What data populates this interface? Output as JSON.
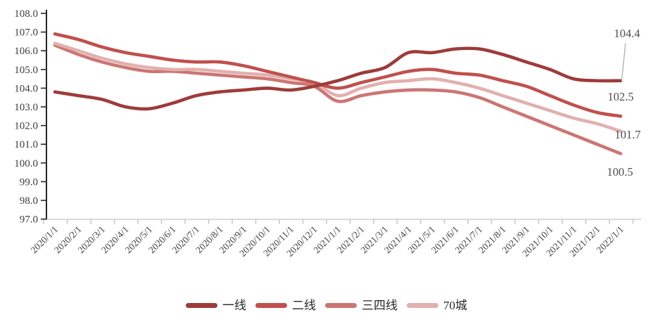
{
  "chart_data": {
    "type": "line",
    "title": "",
    "xlabel": "",
    "ylabel": "",
    "x": [
      "2020/1/1",
      "2020/2/1",
      "2020/3/1",
      "2020/4/1",
      "2020/5/1",
      "2020/6/1",
      "2020/7/1",
      "2020/8/1",
      "2020/9/1",
      "2020/10/1",
      "2020/11/1",
      "2020/12/1",
      "2021/1/1",
      "2021/2/1",
      "2021/3/1",
      "2021/4/1",
      "2021/5/1",
      "2021/6/1",
      "2021/7/1",
      "2021/8/1",
      "2021/9/1",
      "2021/10/1",
      "2021/11/1",
      "2021/12/1",
      "2022/1/1"
    ],
    "ylim": [
      97.0,
      108.0
    ],
    "ytick_step": 1,
    "ytick_labels": [
      "97.0",
      "98.0",
      "99.0",
      "100.0",
      "101.0",
      "102.0",
      "103.0",
      "104.0",
      "105.0",
      "106.0",
      "107.0",
      "108.0"
    ],
    "grid": false,
    "legend_position": "bottom",
    "series": [
      {
        "name": "一线",
        "color": "#9d3c39",
        "end_label": "104.4",
        "values": [
          103.8,
          103.6,
          103.4,
          103.0,
          102.9,
          103.2,
          103.6,
          103.8,
          103.9,
          104.0,
          103.9,
          104.1,
          104.4,
          104.8,
          105.1,
          105.9,
          105.9,
          106.1,
          106.1,
          105.8,
          105.4,
          105.0,
          104.5,
          104.4,
          104.4
        ]
      },
      {
        "name": "二线",
        "color": "#c0504d",
        "end_label": "102.5",
        "values": [
          106.9,
          106.6,
          106.2,
          105.9,
          105.7,
          105.5,
          105.4,
          105.4,
          105.2,
          104.9,
          104.6,
          104.3,
          104.0,
          104.3,
          104.6,
          104.9,
          105.0,
          104.8,
          104.7,
          104.4,
          104.1,
          103.6,
          103.1,
          102.7,
          102.5
        ]
      },
      {
        "name": "三四线",
        "color": "#cb7673",
        "end_label": "100.5",
        "values": [
          106.3,
          105.8,
          105.4,
          105.1,
          104.9,
          104.9,
          104.8,
          104.7,
          104.6,
          104.5,
          104.3,
          104.1,
          103.3,
          103.6,
          103.8,
          103.9,
          103.9,
          103.8,
          103.5,
          103.0,
          102.5,
          102.0,
          101.5,
          101.0,
          100.5
        ]
      },
      {
        "name": "70城",
        "color": "#e2b0ae",
        "end_label": "101.7",
        "values": [
          106.4,
          106.0,
          105.6,
          105.3,
          105.1,
          105.0,
          105.0,
          104.9,
          104.8,
          104.7,
          104.5,
          104.3,
          103.6,
          104.0,
          104.3,
          104.4,
          104.5,
          104.3,
          104.0,
          103.6,
          103.2,
          102.8,
          102.4,
          102.1,
          101.7
        ]
      }
    ]
  },
  "style_colors": {
    "background": "#ffffff",
    "y_axis_line": "#262626",
    "y_tick": "#262626",
    "x_axis_line": "#d9d9d9",
    "x_tick": "#c3c3c3",
    "axis_label": "#3d3d3d",
    "end_label": "#4d4d4d",
    "leader_line": "#b3b3b3",
    "legend_text": "#262626"
  }
}
